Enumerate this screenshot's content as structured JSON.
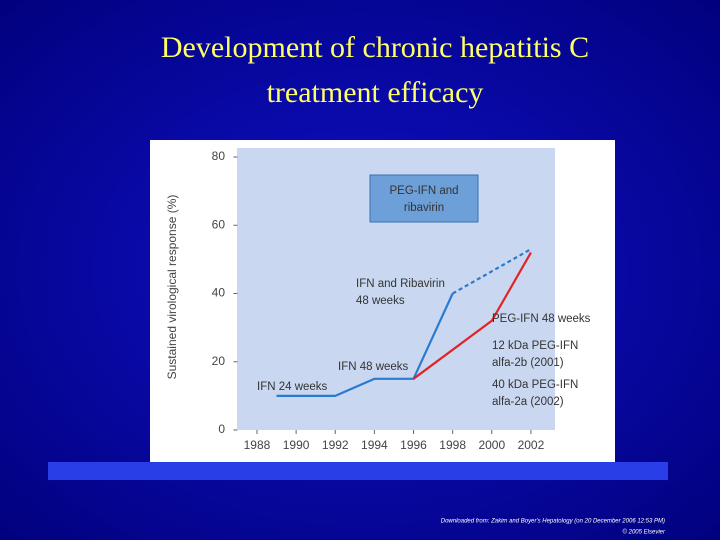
{
  "slide": {
    "title": [
      "Development of chronic hepatitis C",
      "treatment efficacy"
    ],
    "footer": [
      "Downloaded from: Zakim and Boyer's Hepatology (on 20 December 2006 12:53 PM)",
      "© 2005 Elsevier"
    ]
  },
  "chart_data": {
    "type": "line",
    "y_label": "Sustained virological response (%)",
    "xlim": [
      1987,
      2003
    ],
    "xticks": [
      1988,
      1990,
      1992,
      1994,
      1996,
      1998,
      2000,
      2002
    ],
    "ylim": [
      0,
      80
    ],
    "yticks": [
      0,
      20,
      40,
      60,
      80
    ],
    "series": [
      {
        "color": "#2a7bd0",
        "x": [
          1989,
          1992,
          1994,
          1996,
          1998
        ],
        "values": [
          10,
          10,
          15,
          15,
          40
        ]
      },
      {
        "color": "#2a7bd0",
        "dashed": true,
        "x": [
          1998,
          2002
        ],
        "values": [
          40,
          53
        ]
      },
      {
        "color": "#e32228",
        "x": [
          1996,
          2000,
          2002
        ],
        "values": [
          15,
          32,
          52
        ]
      }
    ],
    "annotations": [
      [
        "IFN 24 weeks"
      ],
      [
        "IFN 48 weeks"
      ],
      [
        "IFN and Ribavirin",
        "48 weeks"
      ],
      [
        "PEG-IFN 48 weeks"
      ],
      [
        "12 kDa  PEG-IFN",
        "alfa-2b (2001)"
      ],
      [
        "40 kDa  PEG-IFN",
        "alfa-2a (2002)"
      ]
    ],
    "box_label": [
      "PEG-IFN and",
      "ribavirin"
    ]
  }
}
